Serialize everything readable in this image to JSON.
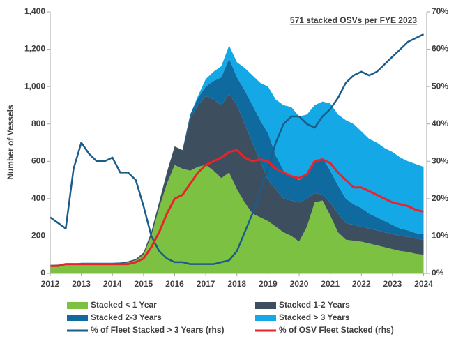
{
  "chart_data": {
    "type": "area",
    "annotation": "571 stacked OSVs per FYE 2023",
    "y_label": "Number of Vessels",
    "x": [
      2012,
      2012.25,
      2012.5,
      2012.75,
      2013,
      2013.25,
      2013.5,
      2013.75,
      2014,
      2014.25,
      2014.5,
      2014.75,
      2015,
      2015.25,
      2015.5,
      2015.75,
      2016,
      2016.25,
      2016.5,
      2016.75,
      2017,
      2017.25,
      2017.5,
      2017.75,
      2018,
      2018.25,
      2018.5,
      2018.75,
      2019,
      2019.25,
      2019.5,
      2019.75,
      2020,
      2020.25,
      2020.5,
      2020.75,
      2021,
      2021.25,
      2021.5,
      2021.75,
      2022,
      2022.25,
      2022.5,
      2022.75,
      2023,
      2023.25,
      2023.5,
      2023.75,
      2024
    ],
    "xlim": [
      2012,
      2024.1
    ],
    "xticks": [
      2012,
      2013,
      2014,
      2015,
      2016,
      2017,
      2018,
      2019,
      2020,
      2021,
      2022,
      2023,
      2024
    ],
    "ylim": [
      0,
      1400
    ],
    "yticks": [
      0,
      200,
      400,
      600,
      800,
      {
        "value": 1000,
        "label": "1,000"
      },
      {
        "value": 1200,
        "label": "1,200"
      },
      {
        "value": 1400,
        "label": "1,400"
      }
    ],
    "y2lim": [
      0,
      70
    ],
    "y2ticks": [
      {
        "value": 0,
        "label": "0%"
      },
      {
        "value": 10,
        "label": "10%"
      },
      {
        "value": 20,
        "label": "20%"
      },
      {
        "value": 30,
        "label": "30%"
      },
      {
        "value": 40,
        "label": "40%"
      },
      {
        "value": 50,
        "label": "50%"
      },
      {
        "value": 60,
        "label": "60%"
      },
      {
        "value": 70,
        "label": "70%"
      }
    ],
    "series": [
      {
        "name": "Stacked < 1 Year",
        "color": "#7cc142",
        "values": [
          40,
          42,
          45,
          45,
          50,
          50,
          50,
          50,
          50,
          52,
          58,
          70,
          100,
          200,
          350,
          480,
          580,
          560,
          550,
          570,
          580,
          550,
          510,
          540,
          450,
          380,
          320,
          300,
          280,
          250,
          220,
          200,
          170,
          250,
          380,
          390,
          310,
          220,
          180,
          175,
          170,
          160,
          150,
          140,
          130,
          120,
          115,
          105,
          100
        ]
      },
      {
        "name": "Stacked 1-2 Years",
        "color": "#3d4f5f",
        "values": [
          3,
          3,
          3,
          3,
          5,
          5,
          5,
          5,
          5,
          5,
          5,
          5,
          10,
          20,
          30,
          60,
          100,
          100,
          280,
          330,
          370,
          380,
          390,
          420,
          450,
          420,
          380,
          300,
          220,
          200,
          180,
          190,
          210,
          150,
          50,
          30,
          70,
          100,
          90,
          85,
          80,
          80,
          80,
          80,
          80,
          80,
          80,
          80,
          80
        ]
      },
      {
        "name": "Stacked 2-3 Years",
        "color": "#0f6aa0",
        "values": [
          2,
          2,
          2,
          2,
          2,
          2,
          2,
          2,
          2,
          2,
          2,
          2,
          2,
          2,
          2,
          2,
          0,
          0,
          20,
          40,
          50,
          100,
          150,
          190,
          150,
          180,
          200,
          220,
          250,
          180,
          150,
          130,
          120,
          130,
          170,
          200,
          170,
          150,
          130,
          110,
          100,
          80,
          70,
          60,
          50,
          40,
          35,
          30,
          30
        ]
      },
      {
        "name": "Stacked > 3 Years",
        "color": "#14a8e6",
        "values": [
          0,
          0,
          0,
          0,
          0,
          0,
          0,
          0,
          0,
          0,
          0,
          0,
          0,
          0,
          0,
          0,
          0,
          0,
          0,
          10,
          40,
          50,
          60,
          70,
          80,
          120,
          160,
          200,
          250,
          300,
          350,
          370,
          340,
          320,
          300,
          300,
          360,
          380,
          420,
          430,
          410,
          400,
          400,
          390,
          390,
          380,
          370,
          370,
          360
        ]
      },
      {
        "name": "% of Fleet Stacked > 3 Years (rhs)",
        "color": "#1a5c8a",
        "type": "line",
        "axis": "y2",
        "values": [
          15,
          13.5,
          12,
          28,
          35,
          32,
          30,
          30,
          31,
          27,
          27,
          25,
          18,
          10,
          6,
          4,
          3,
          3,
          2.5,
          2.5,
          2.5,
          2.5,
          3,
          3.5,
          6,
          11,
          16,
          22,
          28,
          35,
          40,
          42,
          42,
          40,
          39,
          42,
          44,
          47,
          51,
          53,
          54,
          53,
          54,
          56,
          58,
          60,
          62,
          63,
          64
        ]
      },
      {
        "name": "% of OSV Fleet Stacked (rhs)",
        "color": "#e8232a",
        "type": "line",
        "axis": "y2",
        "values": [
          2,
          2,
          2.5,
          2.5,
          2.5,
          2.5,
          2.5,
          2.5,
          2.5,
          2.5,
          2.5,
          3,
          4,
          7,
          11,
          16,
          20,
          21,
          24,
          27,
          29,
          30,
          31,
          32.5,
          33,
          31,
          30,
          30.5,
          30,
          28,
          27,
          26,
          25.5,
          26.5,
          30,
          30.5,
          29.5,
          27,
          25,
          23,
          23,
          22,
          21,
          20,
          19,
          18.5,
          18,
          17,
          16.5
        ]
      }
    ]
  }
}
